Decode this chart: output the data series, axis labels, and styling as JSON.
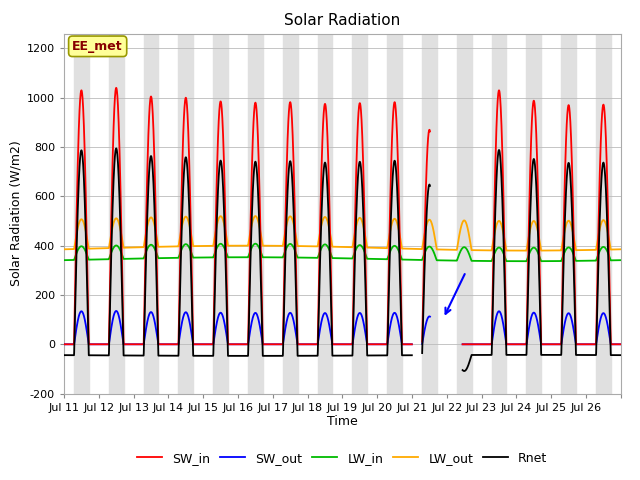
{
  "title": "Solar Radiation",
  "xlabel": "Time",
  "ylabel": "Solar Radiation (W/m2)",
  "ylim": [
    -200,
    1260
  ],
  "yticks": [
    -200,
    0,
    200,
    400,
    600,
    800,
    1000,
    1200
  ],
  "xtick_labels": [
    "Jul 11",
    "Jul 12",
    "Jul 13",
    "Jul 14",
    "Jul 15",
    "Jul 16",
    "Jul 17",
    "Jul 18",
    "Jul 19",
    "Jul 20",
    "Jul 21",
    "Jul 22",
    "Jul 23",
    "Jul 24",
    "Jul 25",
    "Jul 26"
  ],
  "line_colors": {
    "SW_in": "#ff0000",
    "SW_out": "#0000ff",
    "LW_in": "#00bb00",
    "LW_out": "#ffaa00",
    "Rnet": "#000000"
  },
  "band_color": "#e0e0e0",
  "background_color": "#ffffff",
  "annotation_label": "EE_met",
  "annotation_box_facecolor": "#ffff99",
  "annotation_box_edgecolor": "#999900",
  "annotation_text_color": "#880000"
}
